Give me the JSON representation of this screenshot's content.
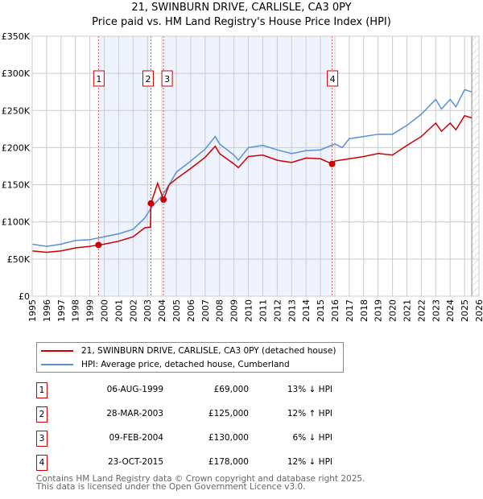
{
  "title_line1": "21, SWINBURN DRIVE, CARLISLE, CA3 0PY",
  "title_line2": "Price paid vs. HM Land Registry's House Price Index (HPI)",
  "chart_data": {
    "type": "line",
    "xlim": [
      1995,
      2026
    ],
    "ylim": [
      0,
      350000
    ],
    "y_ticks": [
      0,
      50000,
      100000,
      150000,
      200000,
      250000,
      300000,
      350000
    ],
    "y_tick_labels": [
      "£0",
      "£50K",
      "£100K",
      "£150K",
      "£200K",
      "£250K",
      "£300K",
      "£350K"
    ],
    "x_ticks": [
      "1995",
      "1996",
      "1997",
      "1998",
      "1999",
      "2000",
      "2001",
      "2002",
      "2003",
      "2004",
      "2005",
      "2006",
      "2007",
      "2008",
      "2009",
      "2010",
      "2011",
      "2012",
      "2013",
      "2014",
      "2015",
      "2016",
      "2017",
      "2018",
      "2019",
      "2020",
      "2021",
      "2022",
      "2023",
      "2024",
      "2025",
      "2026"
    ],
    "grid": true,
    "forecast_hatch_from": 2025.5,
    "shaded_ranges": [
      [
        1999.6,
        2003.24
      ],
      [
        2004.11,
        2015.81
      ]
    ],
    "series": [
      {
        "name": "21, SWINBURN DRIVE, CARLISLE, CA3 0PY (detached house)",
        "color": "#cc0000",
        "x": [
          1995,
          1996,
          1997,
          1998,
          1999,
          1999.6,
          2000,
          2001,
          2002,
          2002.8,
          2003.2,
          2003.24,
          2003.7,
          2004.11,
          2004.5,
          2005,
          2006,
          2007,
          2007.7,
          2008,
          2009,
          2009.3,
          2010,
          2011,
          2012,
          2013,
          2014,
          2015,
          2015.81,
          2016,
          2017,
          2018,
          2019,
          2020,
          2021,
          2022,
          2023,
          2023.4,
          2024,
          2024.4,
          2025,
          2025.5
        ],
        "y": [
          61000,
          59000,
          61000,
          65000,
          67000,
          69000,
          70000,
          74000,
          80000,
          92000,
          93000,
          125000,
          152000,
          130000,
          150000,
          158000,
          172000,
          187000,
          202000,
          192000,
          178000,
          173000,
          188000,
          190000,
          183000,
          180000,
          186000,
          185000,
          178000,
          182000,
          185000,
          188000,
          192000,
          190000,
          203000,
          215000,
          233000,
          222000,
          233000,
          224000,
          243000,
          240000
        ]
      },
      {
        "name": "HPI: Average price, detached house, Cumberland",
        "color": "#5b8fd6",
        "x": [
          1995,
          1996,
          1997,
          1998,
          1999,
          2000,
          2001,
          2002,
          2002.8,
          2003.3,
          2004,
          2004.5,
          2005,
          2006,
          2007,
          2007.7,
          2008,
          2009,
          2009.3,
          2010,
          2011,
          2012,
          2013,
          2014,
          2015,
          2016,
          2016.5,
          2017,
          2018,
          2019,
          2020,
          2021,
          2022,
          2023,
          2023.4,
          2024,
          2024.4,
          2025,
          2025.5
        ],
        "y": [
          70000,
          67000,
          70000,
          75000,
          76000,
          80000,
          84000,
          90000,
          105000,
          120000,
          135000,
          150000,
          167000,
          182000,
          198000,
          215000,
          205000,
          190000,
          183000,
          200000,
          203000,
          197000,
          192000,
          196000,
          197000,
          205000,
          200000,
          212000,
          215000,
          218000,
          218000,
          230000,
          245000,
          265000,
          252000,
          265000,
          255000,
          278000,
          275000
        ]
      }
    ],
    "sales": [
      {
        "id": "1",
        "x": 1999.6,
        "y": 69000
      },
      {
        "id": "2",
        "x": 2003.24,
        "y": 125000
      },
      {
        "id": "3",
        "x": 2004.11,
        "y": 130000
      },
      {
        "id": "4",
        "x": 2015.81,
        "y": 178000
      }
    ]
  },
  "legend": {
    "property": "21, SWINBURN DRIVE, CARLISLE, CA3 0PY (detached house)",
    "hpi": "HPI: Average price, detached house, Cumberland"
  },
  "transactions": [
    {
      "num": "1",
      "date": "06-AUG-1999",
      "price": "£69,000",
      "hpi": "13% ↓ HPI"
    },
    {
      "num": "2",
      "date": "28-MAR-2003",
      "price": "£125,000",
      "hpi": "12% ↑ HPI"
    },
    {
      "num": "3",
      "date": "09-FEB-2004",
      "price": "£130,000",
      "hpi": "6% ↓ HPI"
    },
    {
      "num": "4",
      "date": "23-OCT-2015",
      "price": "£178,000",
      "hpi": "12% ↓ HPI"
    }
  ],
  "footer_line1": "Contains HM Land Registry data © Crown copyright and database right 2025.",
  "footer_line2": "This data is licensed under the Open Government Licence v3.0."
}
